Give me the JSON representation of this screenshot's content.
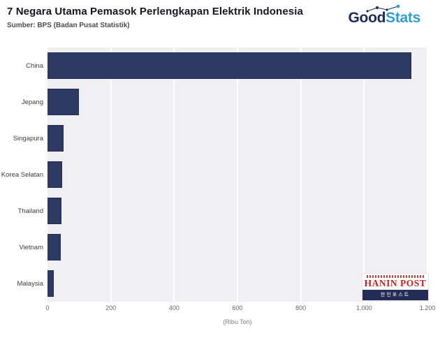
{
  "header": {
    "title": "7 Negara Utama Pemasok Perlengkapan Elektrik Indonesia",
    "subtitle": "Sumber: BPS (Badan Pusat Statistik)",
    "logo": {
      "part1": "Good",
      "part2": "Stats"
    }
  },
  "chart_data": {
    "type": "bar",
    "orientation": "horizontal",
    "title": "7 Negara Utama Pemasok Perlengkapan Elektrik Indonesia",
    "source": "Sumber: BPS (Badan Pusat Statistik)",
    "categories": [
      "China",
      "Jepang",
      "Singapura",
      "Korea Selatan",
      "Thailand",
      "Vietnam",
      "Malaysia"
    ],
    "values": [
      1150,
      100,
      50,
      47,
      44,
      42,
      20
    ],
    "xlabel": "(Ribu Ton)",
    "xlim": [
      0,
      1200
    ],
    "xticks": [
      0,
      200,
      400,
      600,
      800,
      1000,
      1200
    ],
    "xtick_labels": [
      "0",
      "200",
      "400",
      "600",
      "800",
      "1.000",
      "1.200"
    ],
    "bar_color": "#2d3a64",
    "plot_background": "#f0f0f4",
    "grid": true,
    "legend": false
  },
  "watermark": {
    "name": "HANIN POST",
    "korean": "한인포스트"
  }
}
